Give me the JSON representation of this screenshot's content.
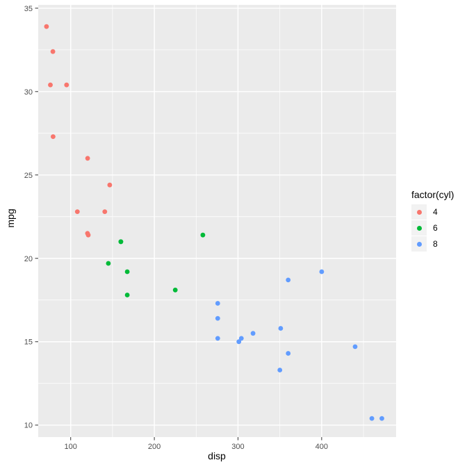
{
  "figure": {
    "background": "#ffffff",
    "panel_bg": "#ebebeb",
    "grid_color": "#ffffff",
    "tick_mark_color": "#333333",
    "tick_label_color": "#4d4d4d",
    "axis_title_color": "#000000"
  },
  "chart_data": {
    "type": "scatter",
    "title": "",
    "xlabel": "disp",
    "ylabel": "mpg",
    "xlim": [
      61.2,
      489.0
    ],
    "ylim": [
      9.28,
      35.2
    ],
    "x_ticks": [
      100,
      200,
      300,
      400
    ],
    "x_minor_ticks": [
      150,
      250,
      350,
      450
    ],
    "y_ticks": [
      10,
      15,
      20,
      25,
      30,
      35
    ],
    "y_minor_ticks": [
      12.5,
      17.5,
      22.5,
      27.5,
      32.5
    ],
    "grid": true,
    "point_radius": 3.4,
    "legend": {
      "title": "factor(cyl)",
      "position": "right",
      "key_bg": "#f2f2f2",
      "entries": [
        {
          "label": "4",
          "color": "#F8766D"
        },
        {
          "label": "6",
          "color": "#00BA38"
        },
        {
          "label": "8",
          "color": "#619CFF"
        }
      ]
    },
    "series": [
      {
        "name": "4",
        "color": "#F8766D",
        "points": [
          [
            71.1,
            33.9
          ],
          [
            78.7,
            32.4
          ],
          [
            75.7,
            30.4
          ],
          [
            95.1,
            30.4
          ],
          [
            79.0,
            27.3
          ],
          [
            120.3,
            26.0
          ],
          [
            146.7,
            24.4
          ],
          [
            108.0,
            22.8
          ],
          [
            140.8,
            22.8
          ],
          [
            120.1,
            21.5
          ],
          [
            121.0,
            21.4
          ]
        ]
      },
      {
        "name": "6",
        "color": "#00BA38",
        "points": [
          [
            160.0,
            21.0
          ],
          [
            160.0,
            21.0
          ],
          [
            258.0,
            21.4
          ],
          [
            145.0,
            19.7
          ],
          [
            167.6,
            19.2
          ],
          [
            225.0,
            18.1
          ],
          [
            167.6,
            17.8
          ]
        ]
      },
      {
        "name": "8",
        "color": "#619CFF",
        "points": [
          [
            400.0,
            19.2
          ],
          [
            360.0,
            18.7
          ],
          [
            275.8,
            17.3
          ],
          [
            275.8,
            16.4
          ],
          [
            351.0,
            15.8
          ],
          [
            318.0,
            15.5
          ],
          [
            275.8,
            15.2
          ],
          [
            304.0,
            15.2
          ],
          [
            301.0,
            15.0
          ],
          [
            440.0,
            14.7
          ],
          [
            360.0,
            14.3
          ],
          [
            350.0,
            13.3
          ],
          [
            472.0,
            10.4
          ],
          [
            460.0,
            10.4
          ]
        ]
      }
    ]
  }
}
